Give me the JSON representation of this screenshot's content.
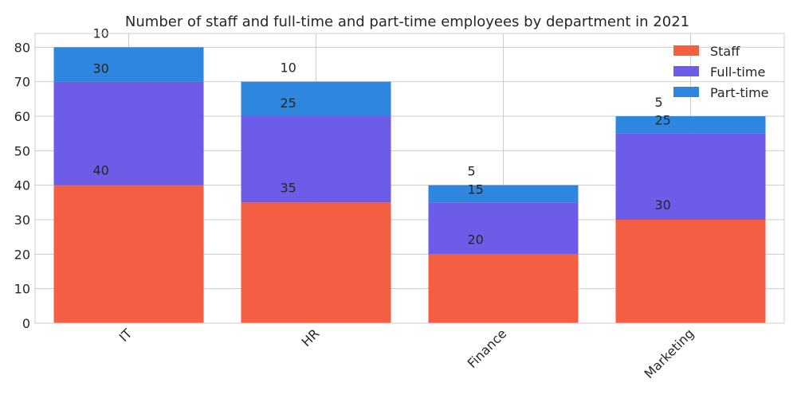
{
  "chart_data": {
    "type": "bar",
    "stacked": true,
    "title": "Number of staff and full-time and part-time employees by department in 2021",
    "xlabel": "",
    "ylabel": "",
    "categories": [
      "IT",
      "HR",
      "Finance",
      "Marketing"
    ],
    "series": [
      {
        "name": "Staff",
        "values": [
          40,
          35,
          20,
          30
        ],
        "color": "#f45e43"
      },
      {
        "name": "Full-time",
        "values": [
          30,
          25,
          15,
          25
        ],
        "color": "#6c5ce7"
      },
      {
        "name": "Part-time",
        "values": [
          10,
          10,
          5,
          5
        ],
        "color": "#2e86de"
      }
    ],
    "ylim": [
      0,
      84
    ],
    "yticks": [
      0,
      10,
      20,
      30,
      40,
      50,
      60,
      70,
      80
    ],
    "grid": true,
    "legend_position": "top-right"
  }
}
